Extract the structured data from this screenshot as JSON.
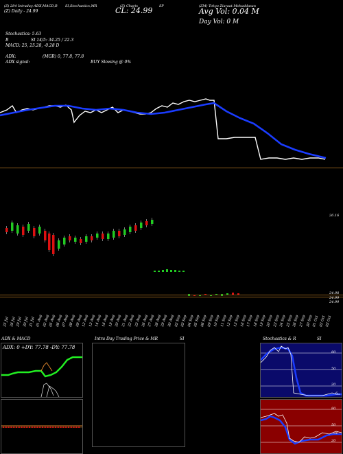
{
  "header": {
    "line1": [
      "(Z) 284 Intraday ADX,MACD,B",
      "SI,Stochastics,MR",
      "(Z) Charts",
      "SP",
      "(ZM) Tokyo Ziaraat Mohaddasan"
    ],
    "close_text": "CL: 24.99",
    "subline": "(Z) Daily  - 24.99",
    "avg_vol": "Avg Vol: 0.04   M",
    "day_vol": "Day Vol: 0   M",
    "stochastics": "Stochastics: 5.63",
    "si_label": "B",
    "si_values": "SI 14/5: 34.25 / 22.3",
    "macd": "MACD: 25, 25.28,  -0.28  D",
    "adx": "ADX:",
    "mgr": "(MGR) 0, 77.8,  77.8",
    "adx_signal": "ADX  signal:",
    "buy_slowing": "BUY Slowing @ 0%"
  },
  "price_panel": {
    "tick_top": "26.16",
    "tick_low1": "24.98",
    "tick_low2": "24.99",
    "tick_low3": "24.99",
    "dates": [
      "25 Jul",
      "26 Jul",
      "29 Jul",
      "30 Jul",
      "31 Jul",
      "01 Aug",
      "02 Aug",
      "05 Aug",
      "06 Aug",
      "07 Aug",
      "08 Aug",
      "09 Aug",
      "12 Aug",
      "13 Aug",
      "14 Aug",
      "16 Aug",
      "19 Aug",
      "20 Aug",
      "21 Aug",
      "22 Aug",
      "23 Aug",
      "26 Aug",
      "27 Aug",
      "28 Aug",
      "29 Aug",
      "30 Aug",
      "02 Sep",
      "03 Sep",
      "04 Sep",
      "05 Sep",
      "06 Sep",
      "09 Sep",
      "10 Sep",
      "11 Sep",
      "12 Sep",
      "13 Sep",
      "16 Sep",
      "17 Sep",
      "18 Sep",
      "19 Sep",
      "20 Sep",
      "23 Sep",
      "24 Sep",
      "25 Sep",
      "26 Sep",
      "27 Sep",
      "30 Sep",
      "01 Oct",
      "02 Oct",
      "03 Oct"
    ]
  },
  "bottom_panels": {
    "adx_title": "ADX  & MACD",
    "adx_readout": "ADX: 0    +DY: 77.78    -DY: 77.78",
    "intraday_title": "Intra  Day Trading Price  & MR",
    "si_title": "SI",
    "stoch_title": "Stochastics & R",
    "si_title2": "SI",
    "stoch_ticks": [
      "80",
      "50",
      "20"
    ],
    "si_ticks": [
      "80",
      "50",
      "20"
    ],
    "stoch_last": "6",
    "si_last": "34"
  },
  "colors": {
    "background": "#000000",
    "ma_line": "#1a3cff",
    "price_line": "#ffffff",
    "grid_line": "#8a5a1a",
    "up_candle": "#22cc22",
    "down_candle": "#dd1111",
    "adx_green": "#22ee22",
    "macd_orange": "#d9822b",
    "stoch_panel": "#0a0a6a",
    "si_panel": "#8a0000"
  }
}
